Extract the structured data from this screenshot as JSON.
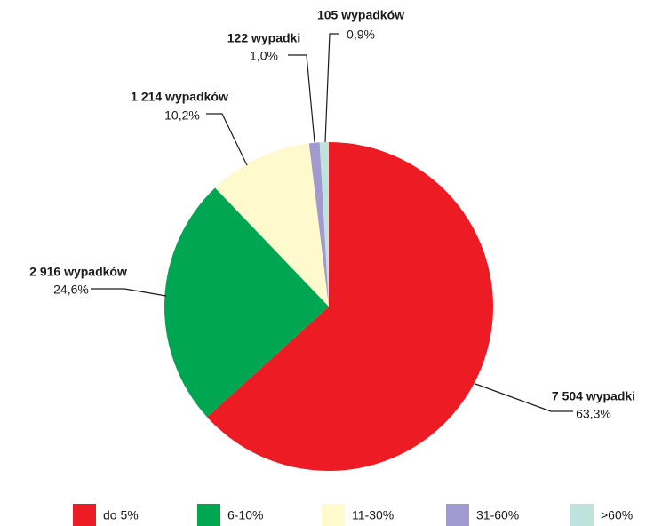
{
  "chart_data": {
    "type": "pie",
    "categories": [
      "do 5%",
      "6-10%",
      "11-30%",
      "31-60%",
      ">60%"
    ],
    "values": [
      7504,
      2916,
      1214,
      122,
      105
    ],
    "value_labels": [
      "7 504 wypadki",
      "2 916 wypadków",
      "1 214 wypadków",
      "122 wypadki",
      "105 wypadków"
    ],
    "percents": [
      63.3,
      24.6,
      10.2,
      1.0,
      0.9
    ],
    "percent_labels": [
      "63,3%",
      "24,6%",
      "10,2%",
      "1,0%",
      "0,9%"
    ],
    "colors": [
      "#ed1c24",
      "#00a651",
      "#fffacd",
      "#a09ad0",
      "#bde3dc"
    ],
    "legend": "bottom"
  }
}
